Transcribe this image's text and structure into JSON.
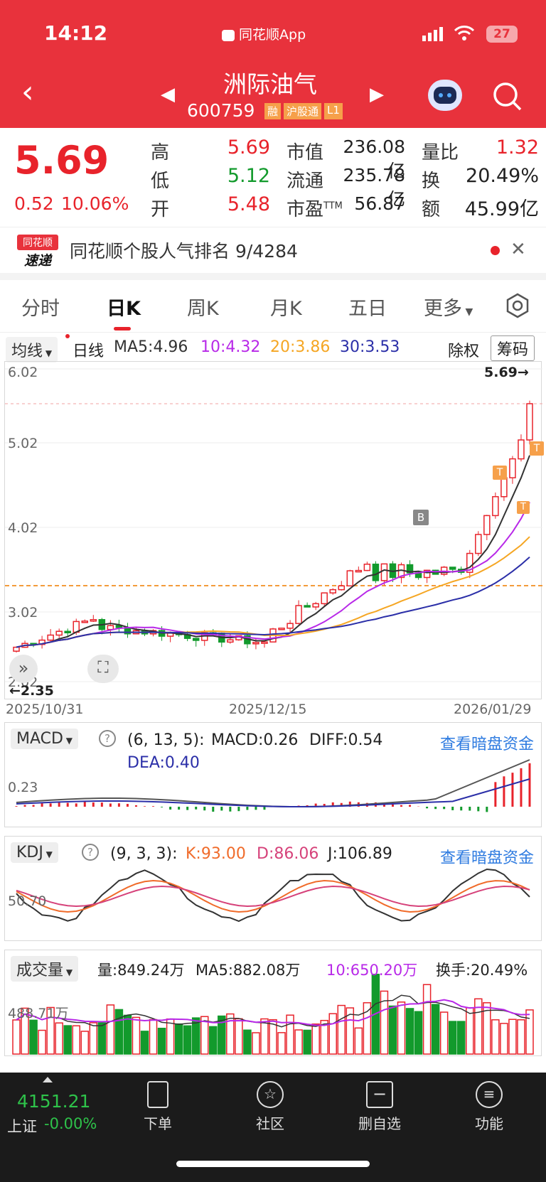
{
  "status": {
    "time": "14:12",
    "center": "同花顺App",
    "battery": "27"
  },
  "header": {
    "name": "洲际油气",
    "code": "600759",
    "tags": [
      "融",
      "沪股通",
      "L1"
    ]
  },
  "quote": {
    "price": "5.69",
    "change": "0.52",
    "pct": "10.06%",
    "high_l": "高",
    "high": "5.69",
    "low_l": "低",
    "low": "5.12",
    "open_l": "开",
    "open": "5.48",
    "mv_l": "市值",
    "mv": "236.08亿",
    "flt_l": "流通",
    "flt": "235.78亿",
    "pe_l": "市盈",
    "pe_sup": "TTM",
    "pe": "56.87",
    "vr_l": "量比",
    "vr": "1.32",
    "to_l": "换",
    "to": "20.49%",
    "amt_l": "额",
    "amt": "45.99亿"
  },
  "news": {
    "logo_top": "同花顺",
    "logo_bottom": "速递",
    "text": "同花顺个股人气排名 9/4284"
  },
  "tabs": [
    "分时",
    "日K",
    "周K",
    "月K",
    "五日",
    "更多"
  ],
  "kline": {
    "select": "均线",
    "line": "日线",
    "ma5": "MA5:4.96",
    "ma10": "10:4.32",
    "ma20": "20:3.86",
    "ma30": "30:3.53",
    "chuquan": "除权",
    "chouma": "筹码",
    "y_labels": [
      "6.02",
      "5.02",
      "4.02",
      "3.02",
      "2.02"
    ],
    "last": "5.69→",
    "low_mark": "←2.35",
    "dates": [
      "2025/10/31",
      "2025/12/15",
      "2026/01/29"
    ],
    "badge_b": "B",
    "badge_t": "T"
  },
  "macd": {
    "select": "MACD",
    "params": "(6, 13, 5):",
    "macd": "MACD:0.26",
    "diff": "DIFF:0.54",
    "dea": "DEA:0.40",
    "link": "查看暗盘资金",
    "ylab": "0.23"
  },
  "kdj": {
    "select": "KDJ",
    "params": "(9, 3, 3):",
    "k": "K:93.00",
    "d": "D:86.06",
    "j": "J:106.89",
    "link": "查看暗盘资金",
    "ylab": "50.70"
  },
  "vol": {
    "select": "成交量",
    "vol": "量:849.24万",
    "ma5": "MA5:882.08万",
    "ma10": "10:650.20万",
    "hs": "换手:20.49%",
    "ylab": "488.71万"
  },
  "bottom": {
    "index": "4151.21",
    "name": "上证",
    "chg": "-0.00%",
    "nav": [
      "下单",
      "社区",
      "删自选",
      "功能"
    ]
  },
  "colors": {
    "brand": "#e8323c",
    "up": "#e8232b",
    "down": "#129a2c",
    "ma5": "#333333",
    "ma10": "#b829e8",
    "ma20": "#f5a623",
    "ma30": "#2b2fa8"
  }
}
